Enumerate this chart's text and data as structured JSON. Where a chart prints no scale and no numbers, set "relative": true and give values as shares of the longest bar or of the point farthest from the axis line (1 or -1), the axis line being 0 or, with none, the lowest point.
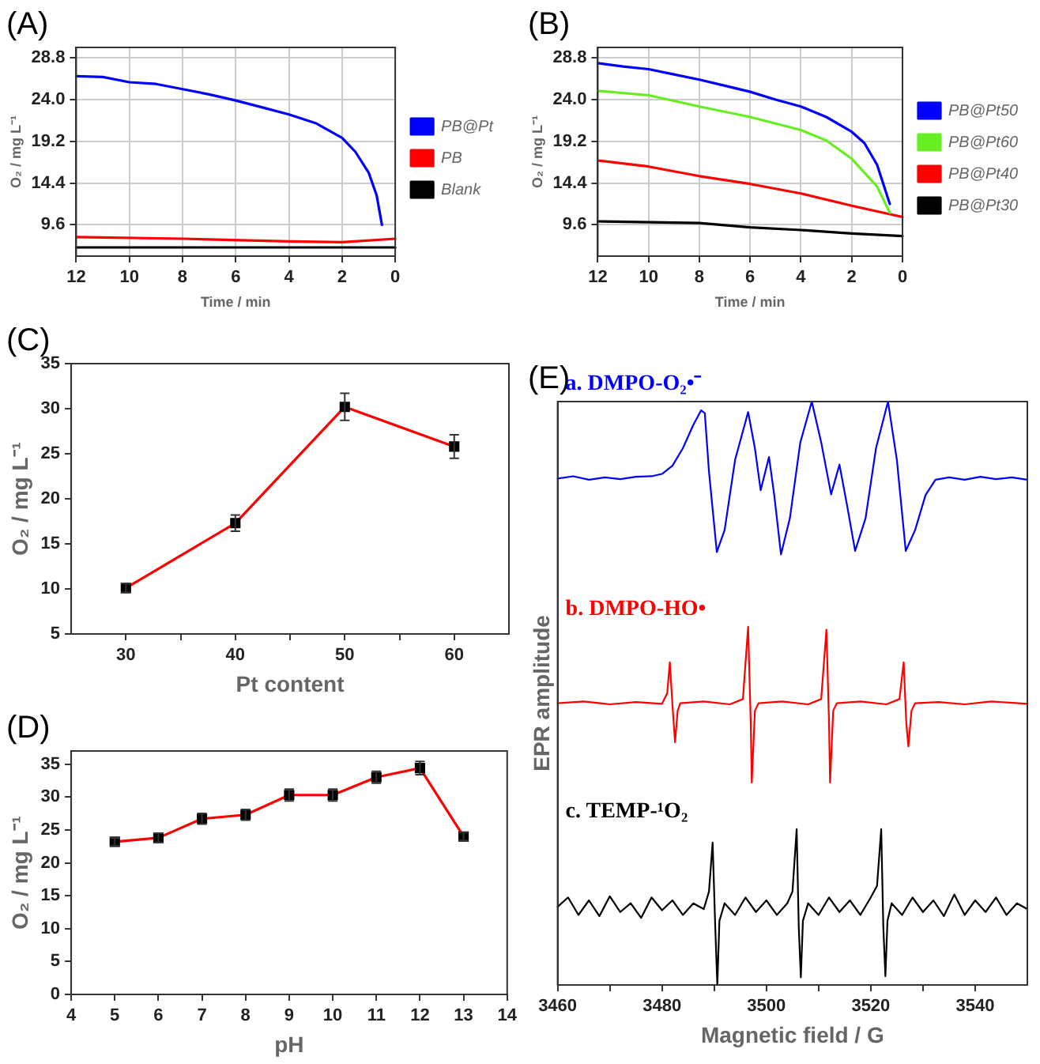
{
  "chart_data": [
    {
      "type": "line",
      "title": "(A)",
      "xlabel": "Time / min",
      "ylabel": "O₂ / mg L⁻¹",
      "xlim": [
        12,
        0
      ],
      "xticks": [
        12,
        10,
        8,
        6,
        4,
        2,
        0
      ],
      "ylim": [
        6,
        30
      ],
      "yticks": [
        {
          "value": 9.6,
          "label": "9.6"
        },
        {
          "value": 14.4,
          "label": "14.4"
        },
        {
          "value": 19.2,
          "label": "19.2"
        },
        {
          "value": 24,
          "label": "24.0"
        },
        {
          "value": 28.8,
          "label": "28.8"
        }
      ],
      "grid": true,
      "legend": "right",
      "marker": "none",
      "line_style": "solid",
      "series": [
        {
          "name": "PB@Pt",
          "color": "#0000ff",
          "x": [
            12,
            11,
            10,
            9,
            8,
            7,
            6,
            5,
            4,
            3,
            2,
            1.5,
            1,
            0.7,
            0.5
          ],
          "values": [
            26.7,
            26.6,
            26.0,
            25.8,
            25.2,
            24.6,
            23.9,
            23.1,
            22.3,
            21.3,
            19.6,
            18.0,
            15.6,
            13.0,
            9.6
          ]
        },
        {
          "name": "PB",
          "color": "#ff0000",
          "x": [
            12,
            8,
            4,
            2,
            0
          ],
          "values": [
            8.2,
            8.0,
            7.7,
            7.6,
            8.0
          ]
        },
        {
          "name": "Blank",
          "color": "#000000",
          "x": [
            12,
            0
          ],
          "values": [
            7.0,
            7.0
          ]
        }
      ]
    },
    {
      "type": "line",
      "title": "(B)",
      "xlabel": "Time / min",
      "ylabel": "O₂ / mg L⁻¹",
      "xlim": [
        12,
        0
      ],
      "xticks": [
        12,
        10,
        8,
        6,
        4,
        2,
        0
      ],
      "ylim": [
        6,
        30
      ],
      "yticks": [
        {
          "value": 9.6,
          "label": "9.6"
        },
        {
          "value": 14.4,
          "label": "14.4"
        },
        {
          "value": 19.2,
          "label": "19.2"
        },
        {
          "value": 24,
          "label": "24.0"
        },
        {
          "value": 28.8,
          "label": "28.8"
        }
      ],
      "grid": true,
      "legend": "right",
      "marker": "none",
      "line_style": "solid",
      "series": [
        {
          "name": "PB@Pt50",
          "color": "#0000ff",
          "x": [
            12,
            11,
            10,
            9,
            8,
            7,
            6,
            5,
            4,
            3,
            2,
            1.5,
            1,
            0.5
          ],
          "values": [
            28.2,
            27.8,
            27.5,
            26.9,
            26.3,
            25.6,
            24.9,
            24.0,
            23.2,
            22.0,
            20.3,
            19.0,
            16.5,
            12.0
          ]
        },
        {
          "name": "PB@Pt60",
          "color": "#66ee22",
          "x": [
            12,
            10,
            8,
            6,
            4,
            3,
            2,
            1,
            0.5
          ],
          "values": [
            25.0,
            24.5,
            23.2,
            22.0,
            20.5,
            19.3,
            17.2,
            14.0,
            11.0
          ]
        },
        {
          "name": "PB@Pt40",
          "color": "#ff0000",
          "x": [
            12,
            10,
            8,
            6,
            4,
            2,
            0
          ],
          "values": [
            17.0,
            16.3,
            15.2,
            14.3,
            13.2,
            11.8,
            10.5
          ]
        },
        {
          "name": "PB@Pt30",
          "color": "#000000",
          "x": [
            12,
            8,
            6,
            4,
            2,
            0
          ],
          "values": [
            10.0,
            9.8,
            9.3,
            9.0,
            8.6,
            8.3
          ]
        }
      ]
    },
    {
      "type": "line",
      "title": "(C)",
      "xlabel": "Pt content",
      "ylabel": "O₂ / mg L⁻¹",
      "x": [
        30,
        40,
        50,
        60
      ],
      "values": [
        10.1,
        17.3,
        30.2,
        25.8
      ],
      "errors": [
        0.5,
        0.9,
        1.5,
        1.3
      ],
      "color": "#ff0000",
      "xlim": [
        25,
        65
      ],
      "xticks": [
        30,
        {
          "value": 35,
          "label": null
        },
        40,
        {
          "value": 45,
          "label": null
        },
        50,
        {
          "value": 55,
          "label": null
        },
        60
      ],
      "ylim": [
        5,
        35
      ],
      "yticks": [
        5,
        10,
        15,
        20,
        25,
        30,
        35
      ],
      "marker": "square",
      "line_style": "solid"
    },
    {
      "type": "line",
      "title": "(D)",
      "xlabel": "pH",
      "ylabel": "O₂ / mg L⁻¹",
      "x": [
        5,
        6,
        7,
        8,
        9,
        10,
        11,
        12,
        13
      ],
      "values": [
        23.2,
        23.8,
        26.7,
        27.3,
        30.3,
        30.3,
        33.0,
        34.4,
        24.0
      ],
      "errors": [
        0.6,
        0.7,
        0.8,
        0.8,
        0.9,
        0.9,
        0.9,
        1.0,
        0.6
      ],
      "color": "#ff0000",
      "xlim": [
        4,
        14
      ],
      "xticks": [
        4,
        5,
        6,
        7,
        8,
        9,
        10,
        11,
        12,
        13,
        14
      ],
      "ylim": [
        0,
        37
      ],
      "yticks": [
        0,
        5,
        10,
        15,
        20,
        25,
        30,
        35
      ],
      "marker": "square",
      "line_style": "solid"
    },
    {
      "type": "line",
      "title": "(E)",
      "xlabel": "Magnetic field / G",
      "ylabel": "EPR amplitude",
      "relative": true,
      "xlim": [
        3460,
        3550
      ],
      "xticks": [
        3460,
        {
          "value": 3470,
          "label": null
        },
        3480,
        {
          "value": 3490,
          "label": null
        },
        3500,
        {
          "value": 3510,
          "label": null
        },
        3520,
        {
          "value": 3530,
          "label": null
        },
        3540
      ],
      "marker": "none",
      "line_style": "solid",
      "series": [
        {
          "name": "a. DMPO-O₂•⁻",
          "color": "#0000ff",
          "x": [
            3460,
            3463,
            3466,
            3469,
            3472,
            3475,
            3478,
            3480,
            3482,
            3484,
            3486,
            3487.5,
            3488.2,
            3489,
            3490.5,
            3492,
            3494,
            3496.5,
            3497.8,
            3498.9,
            3500.5,
            3501.5,
            3502.8,
            3504.5,
            3506.5,
            3508.7,
            3510.5,
            3512.4,
            3514,
            3515.5,
            3517,
            3519,
            3521,
            3523.3,
            3525,
            3526.7,
            3528.5,
            3530.5,
            3532.4,
            3535,
            3538,
            3541,
            3544,
            3547,
            3550
          ],
          "values": [
            0.868,
            0.872,
            0.866,
            0.87,
            0.867,
            0.871,
            0.872,
            0.876,
            0.89,
            0.92,
            0.96,
            0.985,
            0.98,
            0.88,
            0.742,
            0.78,
            0.9,
            0.982,
            0.92,
            0.848,
            0.905,
            0.84,
            0.738,
            0.8,
            0.93,
            1,
            0.93,
            0.841,
            0.892,
            0.82,
            0.744,
            0.8,
            0.92,
            1,
            0.9,
            0.744,
            0.78,
            0.84,
            0.866,
            0.87,
            0.866,
            0.871,
            0.867,
            0.87,
            0.866
          ]
        },
        {
          "name": "b. DMPO-HO•",
          "color": "#ff0000",
          "x": [
            3460,
            3465,
            3470,
            3475,
            3480,
            3481,
            3481.5,
            3482,
            3482.5,
            3483,
            3483.5,
            3488,
            3493,
            3495.5,
            3496.5,
            3497,
            3497.2,
            3497.8,
            3498.5,
            3503,
            3508,
            3510.5,
            3511.5,
            3512,
            3512.2,
            3512.8,
            3513.5,
            3518,
            3523,
            3525.5,
            3526.3,
            3526.8,
            3527.2,
            3527.8,
            3528.5,
            3533,
            3538,
            3543,
            3550
          ],
          "values": [
            0.483,
            0.486,
            0.481,
            0.485,
            0.482,
            0.5,
            0.553,
            0.48,
            0.416,
            0.47,
            0.483,
            0.486,
            0.481,
            0.49,
            0.614,
            0.45,
            0.347,
            0.47,
            0.483,
            0.486,
            0.481,
            0.49,
            0.609,
            0.45,
            0.347,
            0.47,
            0.483,
            0.486,
            0.481,
            0.49,
            0.553,
            0.45,
            0.409,
            0.47,
            0.483,
            0.485,
            0.481,
            0.486,
            0.482
          ]
        },
        {
          "name": "c. TEMP-¹O₂",
          "color": "#000000",
          "x": [
            3460,
            3462,
            3464,
            3466,
            3468,
            3470,
            3472,
            3474,
            3476,
            3478,
            3480,
            3482,
            3484,
            3486,
            3488,
            3489,
            3489.7,
            3490.2,
            3490.6,
            3491,
            3492,
            3494,
            3496,
            3498,
            3500,
            3502,
            3504,
            3505,
            3505.8,
            3506.2,
            3506.6,
            3507,
            3508,
            3510,
            3512,
            3514,
            3516,
            3518,
            3520,
            3521.2,
            3522,
            3522.4,
            3522.8,
            3523.2,
            3524,
            3526,
            3528,
            3530,
            3532,
            3534,
            3536,
            3538,
            3540,
            3542,
            3544,
            3546,
            3548,
            3550
          ],
          "values": [
            0.134,
            0.15,
            0.12,
            0.145,
            0.118,
            0.152,
            0.125,
            0.14,
            0.115,
            0.15,
            0.128,
            0.145,
            0.12,
            0.14,
            0.13,
            0.16,
            0.244,
            0.1,
            0,
            0.11,
            0.14,
            0.12,
            0.15,
            0.125,
            0.145,
            0.12,
            0.14,
            0.16,
            0.267,
            0.1,
            0.013,
            0.11,
            0.14,
            0.12,
            0.15,
            0.125,
            0.145,
            0.12,
            0.15,
            0.17,
            0.267,
            0.1,
            0.015,
            0.11,
            0.14,
            0.12,
            0.15,
            0.125,
            0.145,
            0.118,
            0.155,
            0.12,
            0.145,
            0.125,
            0.15,
            0.12,
            0.14,
            0.13
          ]
        }
      ]
    }
  ]
}
